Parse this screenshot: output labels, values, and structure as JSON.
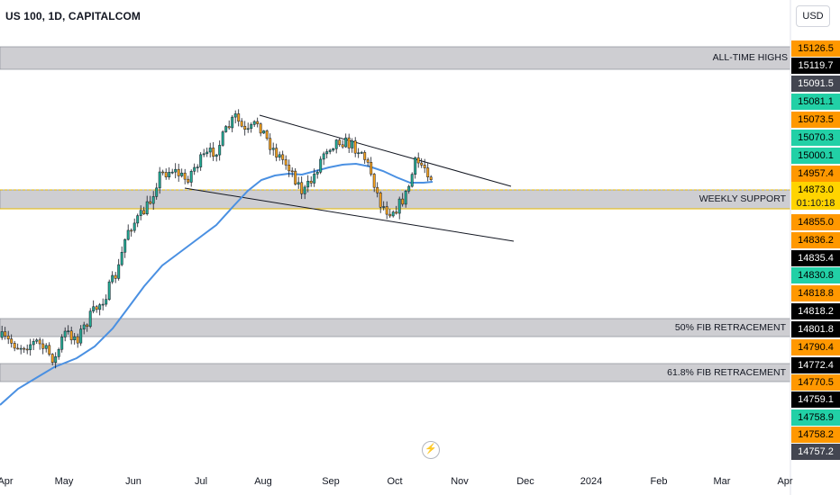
{
  "header": {
    "symbol": "US 100, 1D, CAPITALCOM",
    "currency": "USD"
  },
  "chart_data": {
    "type": "candlestick",
    "instrument": "US 100",
    "timeframe": "1D",
    "x_axis": {
      "type": "date",
      "tick_labels": [
        "Apr",
        "May",
        "Jun",
        "Jul",
        "Aug",
        "Sep",
        "Oct",
        "Nov",
        "Dec",
        "2024",
        "Feb",
        "Mar",
        "Apr"
      ]
    },
    "price_labels": [
      {
        "value": "15126.5",
        "bg": "#ff9800",
        "fg": "#000000"
      },
      {
        "value": "15119.7",
        "bg": "#000000",
        "fg": "#ffffff"
      },
      {
        "value": "15091.5",
        "bg": "#434651",
        "fg": "#ffffff"
      },
      {
        "value": "15081.1",
        "bg": "#22d0a6",
        "fg": "#000000"
      },
      {
        "value": "15073.5",
        "bg": "#ff9800",
        "fg": "#000000"
      },
      {
        "value": "15070.3",
        "bg": "#22d0a6",
        "fg": "#000000"
      },
      {
        "value": "15000.1",
        "bg": "#22d0a6",
        "fg": "#000000"
      },
      {
        "value": "14957.4",
        "bg": "#ff9800",
        "fg": "#000000"
      },
      {
        "value": "14873.0",
        "bg": "#ffd400",
        "fg": "#000000"
      },
      {
        "value": "14855.0",
        "bg": "#ff9800",
        "fg": "#000000"
      },
      {
        "value": "14836.2",
        "bg": "#ff9800",
        "fg": "#000000"
      },
      {
        "value": "14835.4",
        "bg": "#000000",
        "fg": "#ffffff"
      },
      {
        "value": "14830.8",
        "bg": "#22d0a6",
        "fg": "#000000"
      },
      {
        "value": "14818.8",
        "bg": "#ff9800",
        "fg": "#000000"
      },
      {
        "value": "14818.2",
        "bg": "#000000",
        "fg": "#ffffff"
      },
      {
        "value": "14801.8",
        "bg": "#000000",
        "fg": "#ffffff"
      },
      {
        "value": "14790.4",
        "bg": "#ff9800",
        "fg": "#000000"
      },
      {
        "value": "14772.4",
        "bg": "#000000",
        "fg": "#ffffff"
      },
      {
        "value": "14770.5",
        "bg": "#ff9800",
        "fg": "#000000"
      },
      {
        "value": "14759.1",
        "bg": "#000000",
        "fg": "#ffffff"
      },
      {
        "value": "14758.9",
        "bg": "#22d0a6",
        "fg": "#000000"
      },
      {
        "value": "14758.2",
        "bg": "#ff9800",
        "fg": "#000000"
      },
      {
        "value": "14757.2",
        "bg": "#434651",
        "fg": "#ffffff"
      }
    ],
    "last_price": "14873.0",
    "countdown": "01:10:18",
    "zones": [
      {
        "label": "ALL-TIME HIGHS"
      },
      {
        "label": "WEEKLY SUPPORT"
      },
      {
        "label": "50% FIB RETRACEMENT"
      },
      {
        "label": "61.8% FIB RETRACEMENT"
      }
    ],
    "moving_average": {
      "color": "#4a90e2"
    },
    "colors": {
      "up": "#22ab94",
      "down": "#f7a21b",
      "wick": "#131722",
      "zone": "#c5c6ca",
      "channel": "#131722"
    }
  }
}
